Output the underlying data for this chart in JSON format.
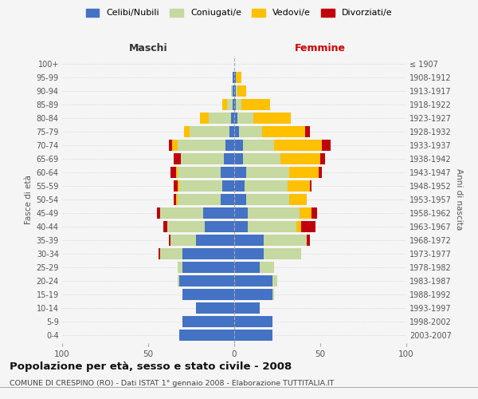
{
  "age_groups": [
    "0-4",
    "5-9",
    "10-14",
    "15-19",
    "20-24",
    "25-29",
    "30-34",
    "35-39",
    "40-44",
    "45-49",
    "50-54",
    "55-59",
    "60-64",
    "65-69",
    "70-74",
    "75-79",
    "80-84",
    "85-89",
    "90-94",
    "95-99",
    "100+"
  ],
  "birth_years": [
    "2003-2007",
    "1998-2002",
    "1993-1997",
    "1988-1992",
    "1983-1987",
    "1978-1982",
    "1973-1977",
    "1968-1972",
    "1963-1967",
    "1958-1962",
    "1953-1957",
    "1948-1952",
    "1943-1947",
    "1938-1942",
    "1933-1937",
    "1928-1932",
    "1923-1927",
    "1918-1922",
    "1913-1917",
    "1908-1912",
    "≤ 1907"
  ],
  "maschi": {
    "celibi": [
      32,
      30,
      22,
      30,
      32,
      30,
      30,
      22,
      17,
      18,
      8,
      7,
      8,
      6,
      5,
      3,
      2,
      1,
      1,
      1,
      0
    ],
    "coniugati": [
      0,
      0,
      0,
      0,
      1,
      3,
      13,
      15,
      22,
      25,
      25,
      25,
      25,
      25,
      28,
      23,
      13,
      3,
      1,
      0,
      0
    ],
    "vedovi": [
      0,
      0,
      0,
      0,
      0,
      0,
      0,
      0,
      0,
      0,
      1,
      1,
      1,
      0,
      3,
      3,
      5,
      3,
      0,
      0,
      0
    ],
    "divorziati": [
      0,
      0,
      0,
      0,
      0,
      0,
      1,
      1,
      2,
      2,
      1,
      2,
      3,
      4,
      2,
      0,
      0,
      0,
      0,
      0,
      0
    ]
  },
  "femmine": {
    "nubili": [
      22,
      22,
      15,
      22,
      22,
      15,
      17,
      17,
      8,
      8,
      7,
      6,
      7,
      5,
      5,
      3,
      2,
      1,
      1,
      1,
      0
    ],
    "coniugate": [
      0,
      0,
      0,
      1,
      3,
      8,
      22,
      25,
      28,
      30,
      25,
      25,
      25,
      22,
      18,
      13,
      9,
      3,
      1,
      0,
      0
    ],
    "vedove": [
      0,
      0,
      0,
      0,
      0,
      0,
      0,
      0,
      3,
      7,
      10,
      13,
      17,
      23,
      28,
      25,
      22,
      17,
      5,
      3,
      0
    ],
    "divorziate": [
      0,
      0,
      0,
      0,
      0,
      0,
      0,
      2,
      8,
      3,
      0,
      1,
      2,
      3,
      5,
      3,
      0,
      0,
      0,
      0,
      0
    ]
  },
  "colors": {
    "celibi": "#4472c4",
    "coniugati": "#c5d9a0",
    "vedovi": "#ffc000",
    "divorziati": "#c0000b"
  },
  "xlim": 100,
  "title": "Popolazione per età, sesso e stato civile - 2008",
  "subtitle": "COMUNE DI CRESPINO (RO) - Dati ISTAT 1° gennaio 2008 - Elaborazione TUTTITALIA.IT",
  "ylabel_left": "Fasce di età",
  "ylabel_right": "Anni di nascita",
  "xlabel_left": "Maschi",
  "xlabel_right": "Femmine",
  "legend_labels": [
    "Celibi/Nubili",
    "Coniugati/e",
    "Vedovi/e",
    "Divorziati/e"
  ],
  "bg_color": "#f5f5f5",
  "grid_color": "#cccccc"
}
